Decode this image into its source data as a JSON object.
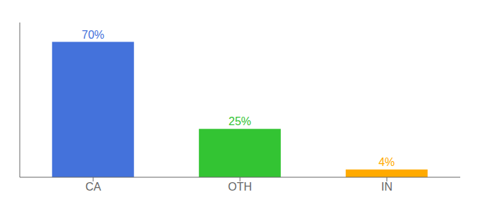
{
  "chart_data": {
    "type": "bar",
    "categories": [
      "CA",
      "OTH",
      "IN"
    ],
    "values": [
      70,
      25,
      4
    ],
    "colors": [
      "#4472db",
      "#33c433",
      "#ffaa00"
    ],
    "ylim": [
      0,
      80
    ],
    "data_labels": true,
    "value_labels": [
      "70%",
      "25%",
      "4%"
    ],
    "tick_labels": "x"
  }
}
